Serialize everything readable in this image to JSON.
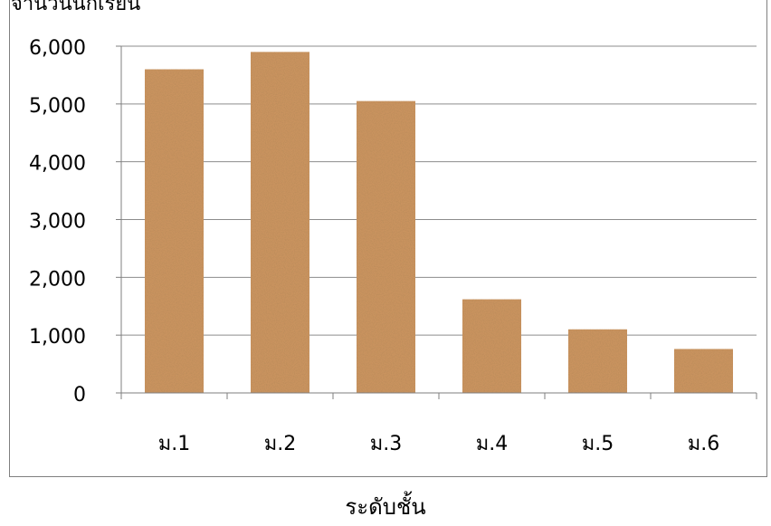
{
  "chart_data": {
    "type": "bar",
    "ylabel": "จำนวนนักเรียน",
    "xlabel": "ระดับชั้น",
    "categories": [
      "ม.1",
      "ม.2",
      "ม.3",
      "ม.4",
      "ม.5",
      "ม.6"
    ],
    "values": [
      5600,
      5900,
      5050,
      1620,
      1100,
      760
    ],
    "ylim": [
      0,
      6000
    ],
    "yticks": [
      "0",
      "1,000",
      "2,000",
      "3,000",
      "4,000",
      "5,000",
      "6,000"
    ],
    "grid": true,
    "legend": "none",
    "bar_color": "#c9935f",
    "grid_color": "#8c8c8c"
  }
}
